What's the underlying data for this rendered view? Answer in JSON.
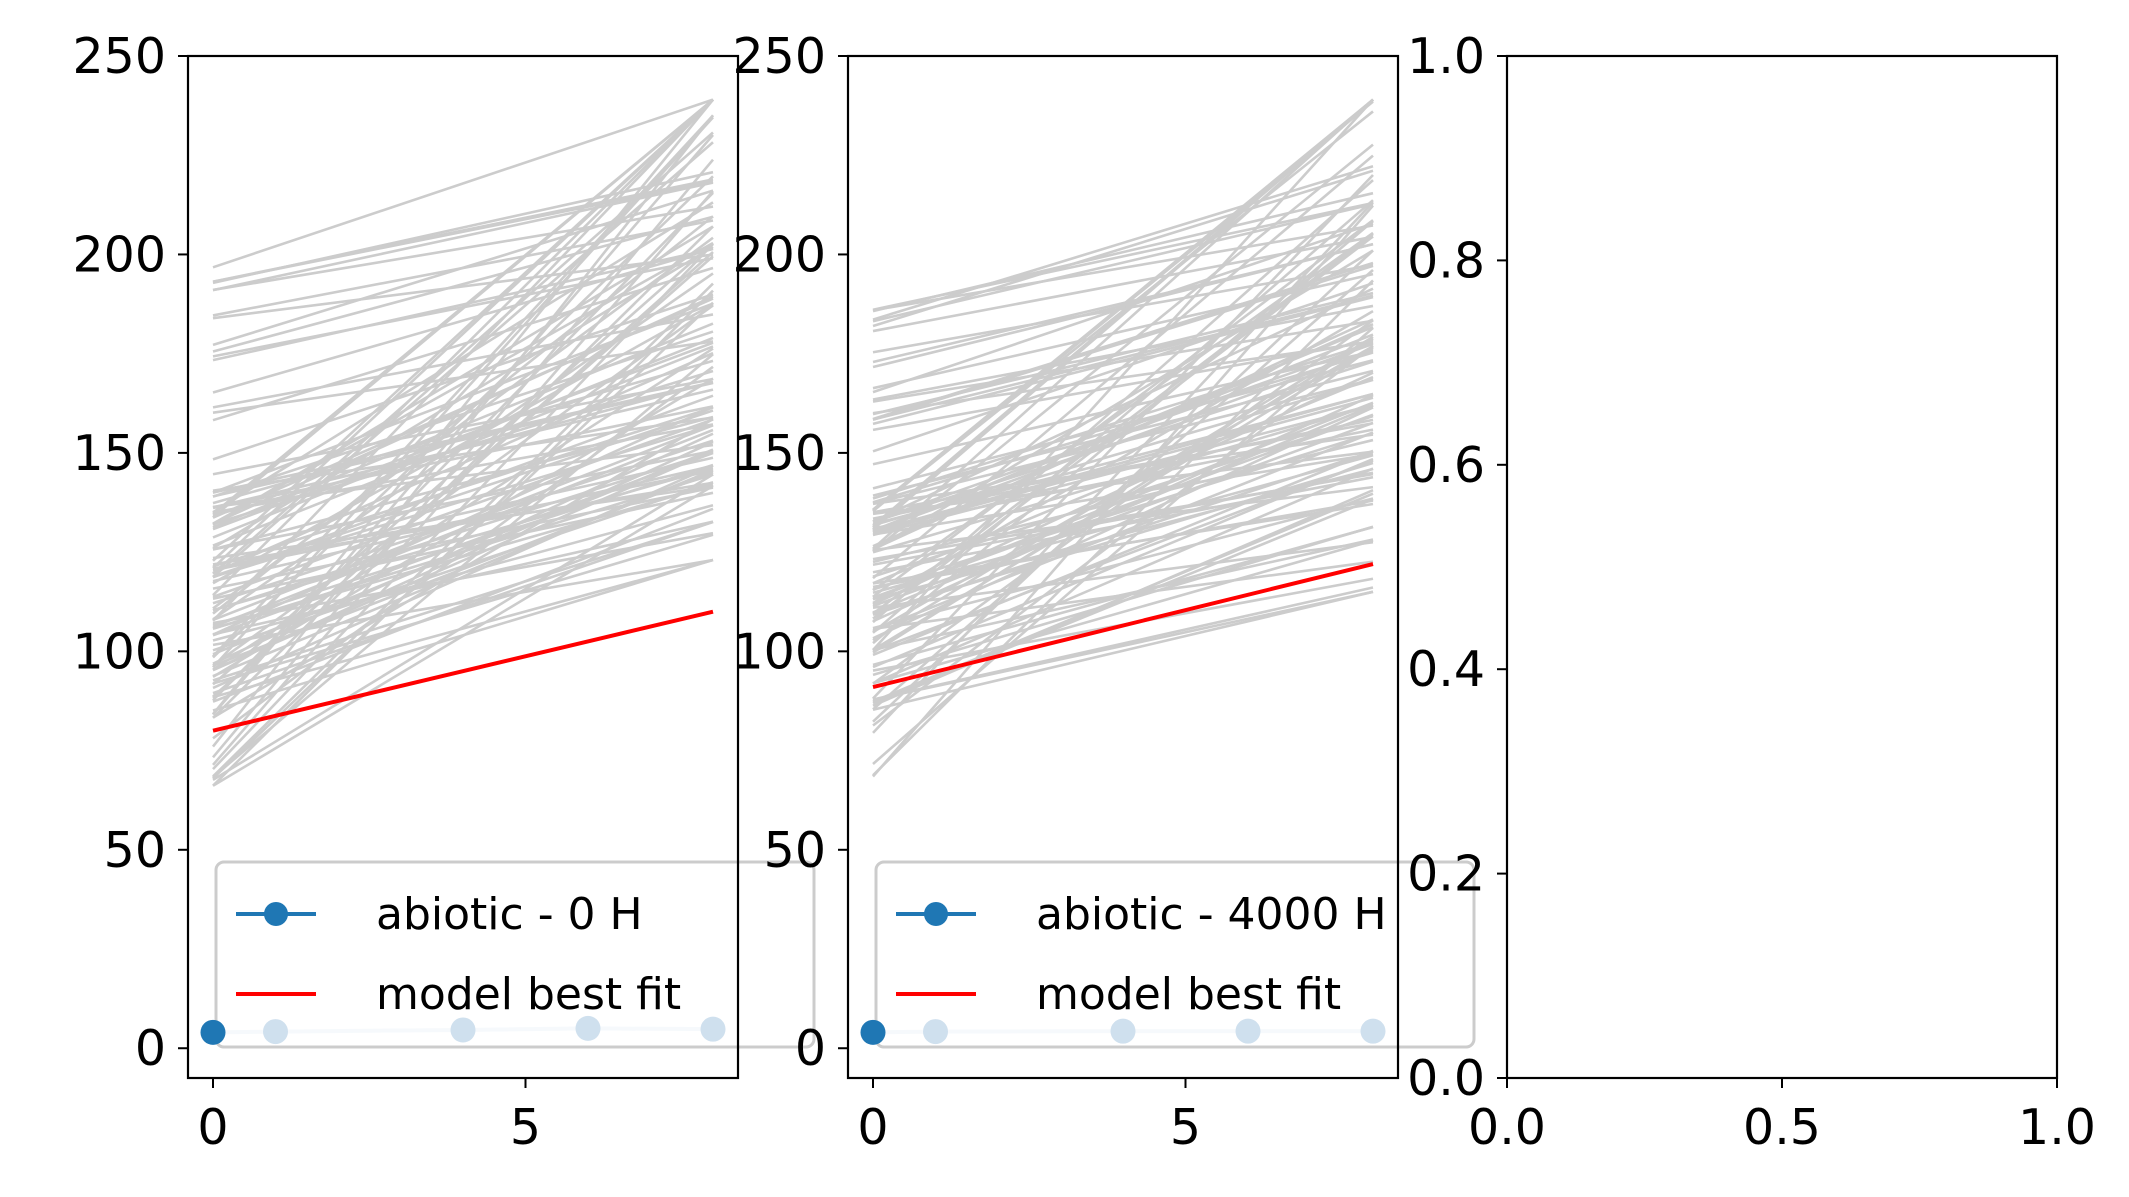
{
  "colors": {
    "data": "#1f77b4",
    "data_faded": "#cfe0ee",
    "fit": "#ff0000",
    "samples": "#cccccc"
  },
  "chart_data": [
    {
      "type": "line",
      "xlim": [
        -0.4,
        8.4
      ],
      "ylim": [
        -7.5,
        250
      ],
      "xticks": [
        0,
        5
      ],
      "yticks": [
        0,
        50,
        100,
        150,
        200,
        250
      ],
      "legend_placement": "lower-right",
      "legend": [
        "abiotic - 0 H",
        " model best fit"
      ],
      "data_points": {
        "x": [
          0,
          1,
          4,
          6,
          8
        ],
        "y": [
          4,
          4.2,
          4.6,
          5,
          4.8
        ]
      },
      "best_fit": {
        "x": [
          0,
          8
        ],
        "y": [
          80,
          110
        ]
      },
      "posterior_samples_range": {
        "y_at_x0": [
          66,
          198
        ],
        "y_at_x8": [
          123,
          239
        ]
      }
    },
    {
      "type": "line",
      "xlim": [
        -0.4,
        8.4
      ],
      "ylim": [
        -7.5,
        250
      ],
      "xticks": [
        0,
        5
      ],
      "yticks": [
        0,
        50,
        100,
        150,
        200,
        250
      ],
      "legend_placement": "lower-right",
      "legend": [
        "abiotic - 4000 H",
        " model best fit"
      ],
      "data_points": {
        "x": [
          0,
          1,
          4,
          6,
          8
        ],
        "y": [
          4,
          4.2,
          4.3,
          4.3,
          4.3
        ]
      },
      "best_fit": {
        "x": [
          0,
          8
        ],
        "y": [
          91,
          122
        ]
      },
      "posterior_samples_range": {
        "y_at_x0": [
          66,
          188
        ],
        "y_at_x8": [
          115,
          239
        ]
      }
    },
    {
      "type": "line",
      "xlim": [
        0,
        1
      ],
      "ylim": [
        0,
        1
      ],
      "xticks": [
        "0.0",
        "0.5",
        "1.0"
      ],
      "yticks": [
        "0.0",
        "0.2",
        "0.4",
        "0.6",
        "0.8",
        "1.0"
      ]
    }
  ]
}
